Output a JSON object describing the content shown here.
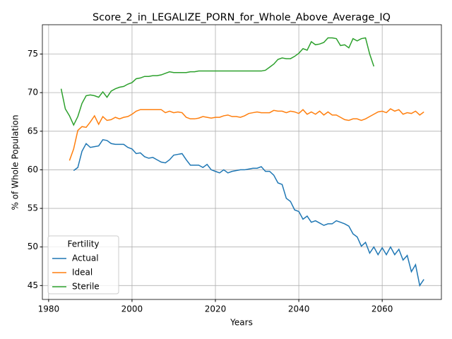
{
  "chart_data": {
    "type": "line",
    "title": "Score_2_in_LEGALIZE_PORN_for_Whole_Above_Average_IQ",
    "x_label": "Years",
    "y_label": "% of Whole Population",
    "legend_title": "Fertility",
    "legend_position": "lower left",
    "grid": true,
    "xlim": [
      1978.5,
      2074.2
    ],
    "ylim": [
      43.2,
      78.8
    ],
    "xticks": [
      1980,
      2000,
      2020,
      2040,
      2060
    ],
    "yticks": [
      45,
      50,
      55,
      60,
      65,
      70,
      75
    ],
    "x": [
      1983,
      1984,
      1985,
      1986,
      1987,
      1988,
      1989,
      1990,
      1991,
      1992,
      1993,
      1994,
      1995,
      1996,
      1997,
      1998,
      1999,
      2000,
      2001,
      2002,
      2003,
      2004,
      2005,
      2006,
      2007,
      2008,
      2009,
      2010,
      2011,
      2012,
      2013,
      2014,
      2015,
      2016,
      2017,
      2018,
      2019,
      2020,
      2021,
      2022,
      2023,
      2024,
      2025,
      2026,
      2027,
      2028,
      2029,
      2030,
      2031,
      2032,
      2033,
      2034,
      2035,
      2036,
      2037,
      2038,
      2039,
      2040,
      2041,
      2042,
      2043,
      2044,
      2045,
      2046,
      2047,
      2048,
      2049,
      2050,
      2051,
      2052,
      2053,
      2054,
      2055,
      2056,
      2057,
      2058,
      2059,
      2060,
      2061,
      2062,
      2063,
      2064,
      2065,
      2066,
      2067,
      2068,
      2069,
      2070
    ],
    "series": [
      {
        "name": "Actual",
        "color": "#1f77b4",
        "values": [
          null,
          null,
          null,
          59.9,
          60.3,
          62.4,
          63.4,
          62.9,
          63.0,
          63.1,
          63.9,
          63.8,
          63.4,
          63.3,
          63.3,
          63.3,
          62.9,
          62.7,
          62.1,
          62.2,
          61.7,
          61.5,
          61.6,
          61.3,
          61.0,
          60.9,
          61.3,
          61.9,
          62.0,
          62.1,
          61.3,
          60.6,
          60.6,
          60.6,
          60.3,
          60.7,
          60.0,
          59.8,
          59.6,
          60.0,
          59.6,
          59.8,
          59.9,
          60.0,
          60.0,
          60.1,
          60.2,
          60.2,
          60.4,
          59.8,
          59.8,
          59.3,
          58.3,
          58.1,
          56.3,
          55.9,
          54.8,
          54.6,
          53.6,
          54.0,
          53.2,
          53.4,
          53.1,
          52.8,
          53.0,
          53.0,
          53.4,
          53.2,
          53.0,
          52.7,
          51.7,
          51.3,
          50.1,
          50.6,
          49.2,
          50.0,
          49.0,
          49.9,
          49.0,
          50.0,
          49.0,
          49.7,
          48.3,
          48.9,
          46.8,
          47.7,
          45.0,
          45.8
        ]
      },
      {
        "name": "Ideal",
        "color": "#ff7f0e",
        "values": [
          null,
          null,
          61.2,
          62.7,
          65.1,
          65.6,
          65.5,
          66.2,
          67.0,
          65.9,
          66.9,
          66.4,
          66.5,
          66.8,
          66.6,
          66.8,
          66.9,
          67.2,
          67.6,
          67.8,
          67.8,
          67.8,
          67.8,
          67.8,
          67.8,
          67.4,
          67.6,
          67.4,
          67.5,
          67.4,
          66.8,
          66.6,
          66.6,
          66.7,
          66.9,
          66.8,
          66.7,
          66.8,
          66.8,
          67.0,
          67.1,
          66.9,
          66.9,
          66.8,
          67.0,
          67.3,
          67.4,
          67.5,
          67.4,
          67.4,
          67.4,
          67.7,
          67.6,
          67.6,
          67.4,
          67.6,
          67.5,
          67.3,
          67.8,
          67.2,
          67.5,
          67.2,
          67.6,
          67.1,
          67.5,
          67.1,
          67.1,
          66.8,
          66.5,
          66.4,
          66.6,
          66.6,
          66.4,
          66.6,
          66.9,
          67.2,
          67.5,
          67.6,
          67.4,
          67.9,
          67.6,
          67.8,
          67.2,
          67.4,
          67.3,
          67.6,
          67.1,
          67.5
        ]
      },
      {
        "name": "Sterile",
        "color": "#2ca02c",
        "values": [
          70.5,
          67.9,
          67.0,
          65.8,
          66.9,
          68.6,
          69.6,
          69.7,
          69.6,
          69.4,
          70.1,
          69.4,
          70.2,
          70.5,
          70.7,
          70.8,
          71.1,
          71.3,
          71.8,
          71.9,
          72.1,
          72.1,
          72.2,
          72.2,
          72.3,
          72.5,
          72.7,
          72.6,
          72.6,
          72.6,
          72.6,
          72.7,
          72.7,
          72.8,
          72.8,
          72.8,
          72.8,
          72.8,
          72.8,
          72.8,
          72.8,
          72.8,
          72.8,
          72.8,
          72.8,
          72.8,
          72.8,
          72.8,
          72.8,
          72.9,
          73.3,
          73.7,
          74.3,
          74.5,
          74.4,
          74.4,
          74.7,
          75.1,
          75.7,
          75.5,
          76.6,
          76.2,
          76.3,
          76.5,
          77.1,
          77.1,
          77.0,
          76.1,
          76.2,
          75.8,
          77.0,
          76.7,
          77.0,
          77.1,
          75.0,
          73.4,
          null,
          null,
          null,
          null,
          null,
          null,
          null,
          null,
          null,
          null,
          null,
          null
        ]
      }
    ]
  }
}
